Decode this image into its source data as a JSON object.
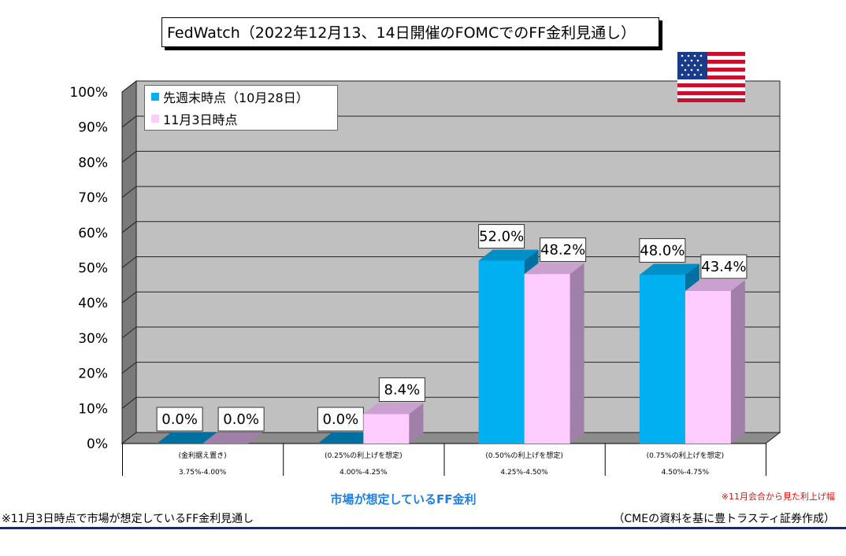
{
  "title": "FedWatch（2022年12月13、14日開催のFOMCでのFF金利見通し）",
  "chart_data": {
    "type": "bar",
    "y_ticks": [
      "0%",
      "10%",
      "20%",
      "30%",
      "40%",
      "50%",
      "60%",
      "70%",
      "80%",
      "90%",
      "100%"
    ],
    "ylim": [
      0,
      100
    ],
    "grid": true,
    "legend_position": "top-left",
    "categories": [
      {
        "line1": "(金利据え置き)",
        "line2": "3.75%-4.00%"
      },
      {
        "line1": "(0.25%の利上げを想定)",
        "line2": "4.00%-4.25%"
      },
      {
        "line1": "(0.50%の利上げを想定)",
        "line2": "4.25%-4.50%"
      },
      {
        "line1": "(0.75%の利上げを想定)",
        "line2": "4.50%-4.75%"
      }
    ],
    "series": [
      {
        "name": "先週末時点（10月28日）",
        "values": [
          0.0,
          0.0,
          52.0,
          48.0
        ],
        "labels": [
          "0.0%",
          "0.0%",
          "52.0%",
          "48.0%"
        ],
        "color": "#00b0f0"
      },
      {
        "name": "11月3日時点",
        "values": [
          0.0,
          8.4,
          48.2,
          43.4
        ],
        "labels": [
          "0.0%",
          "8.4%",
          "48.2%",
          "43.4%"
        ],
        "color": "#ffccff"
      }
    ],
    "xlabel": "市場が想定しているFF金利"
  },
  "notes": {
    "right": "※11月会合から見た利上げ幅",
    "left": "※11月3日時点で市場が想定しているFF金利見通し",
    "source": "（CMEの資料を基に豊トラスティ証券作成）"
  },
  "flag_icon": "us-flag-icon"
}
